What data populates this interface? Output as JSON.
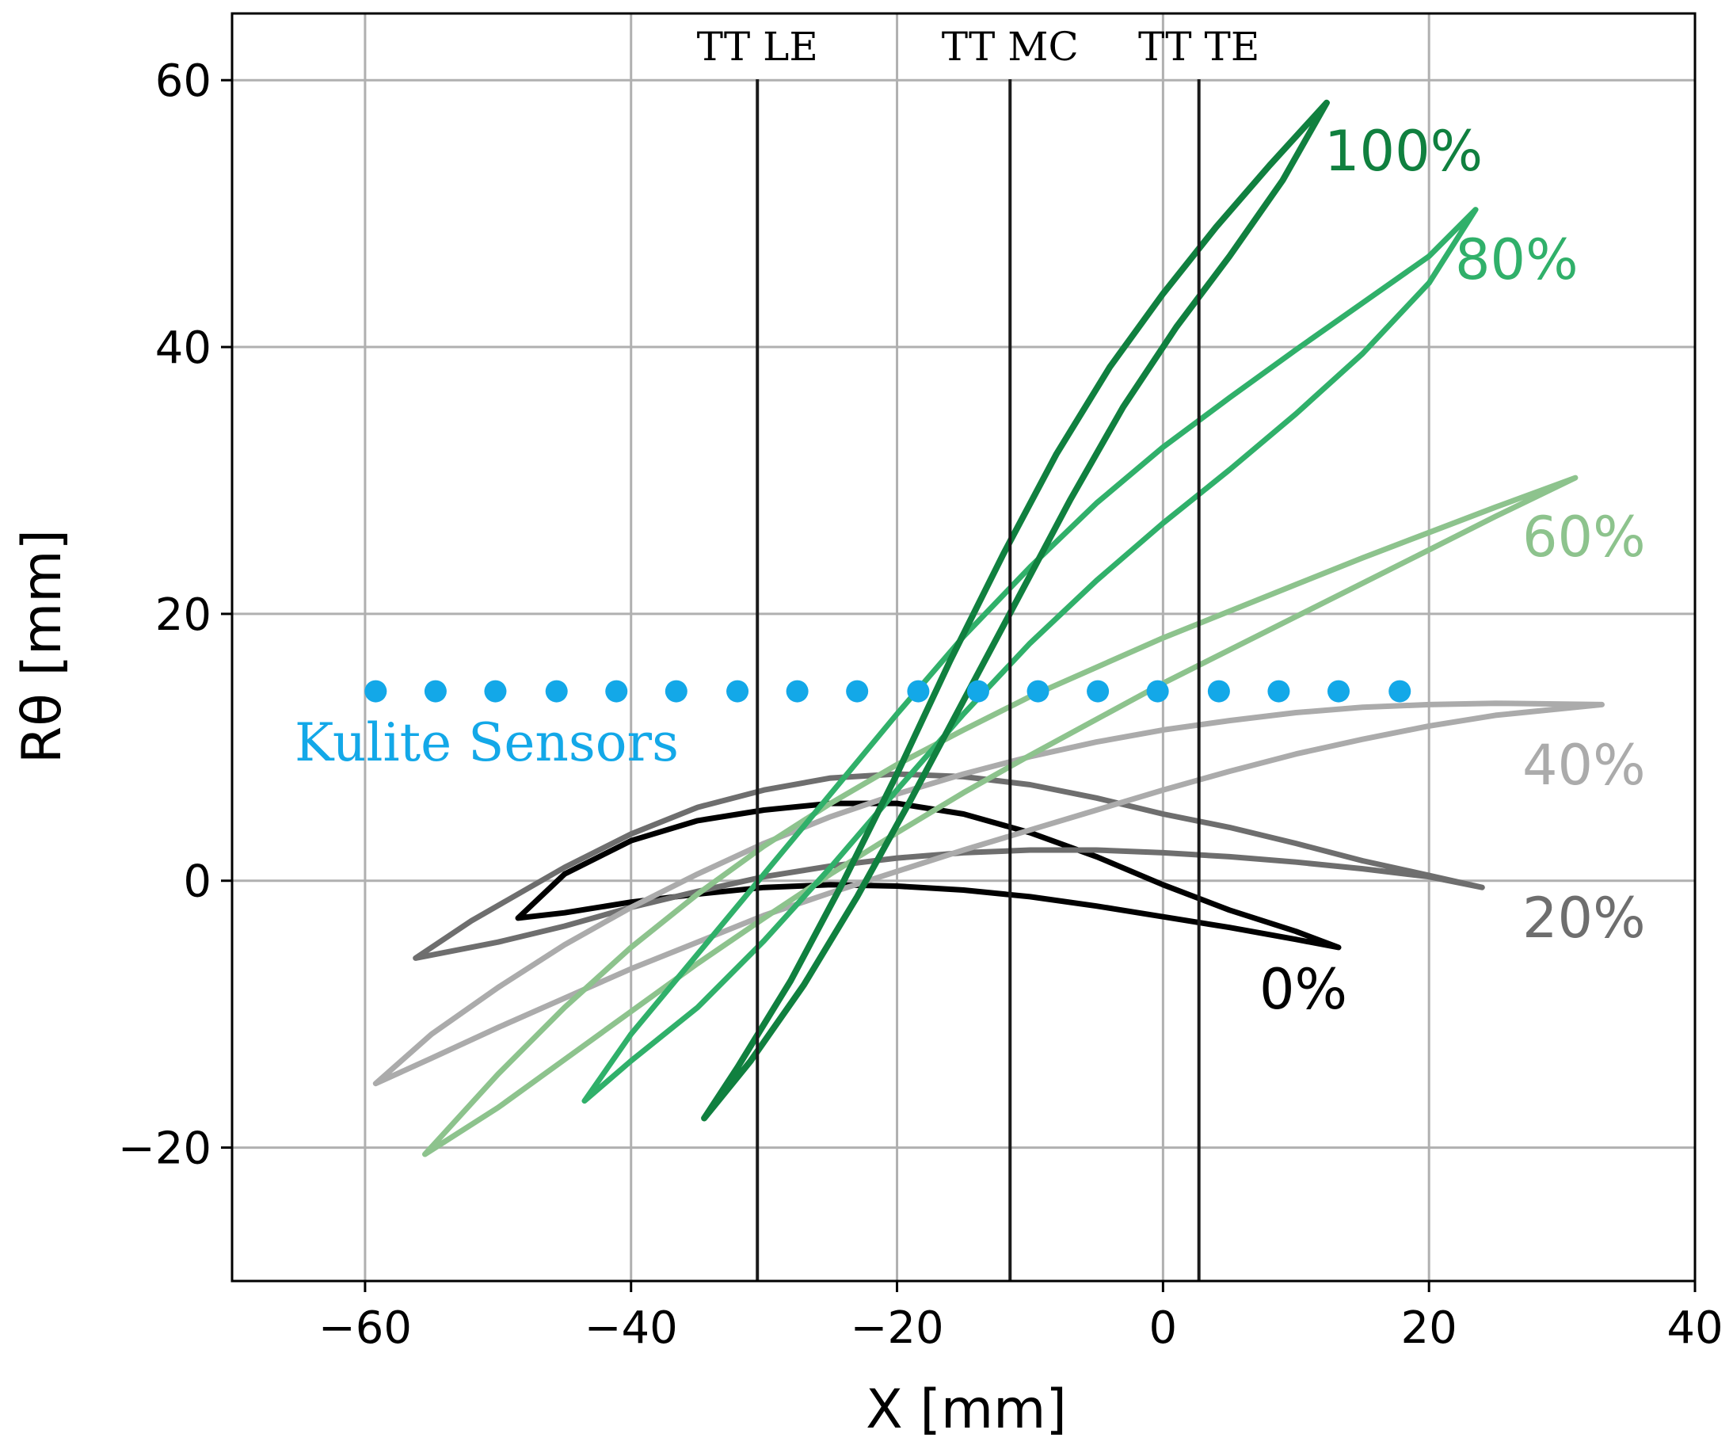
{
  "chart_data": {
    "type": "line",
    "xlabel": "X [mm]",
    "ylabel": "Rθ [mm]",
    "xlim": [
      -70,
      40
    ],
    "ylim": [
      -30,
      65
    ],
    "xticks": [
      -60,
      -40,
      -20,
      0,
      20,
      40
    ],
    "yticks": [
      -20,
      0,
      20,
      40,
      60
    ],
    "xtick_labels": [
      "−60",
      "−40",
      "−20",
      "0",
      "20",
      "40"
    ],
    "ytick_labels": [
      "−20",
      "0",
      "20",
      "40",
      "60"
    ],
    "grid": true,
    "colors": {
      "kulite": "#13a8e8",
      "vline": "#1a1a1a",
      "grid": "#b0b0b0"
    },
    "vlines": [
      {
        "x": -30.5,
        "label": "TT LE"
      },
      {
        "x": -11.5,
        "label": "TT MC"
      },
      {
        "x": 2.7,
        "label": "TT TE"
      }
    ],
    "kulite_sensors": {
      "label": "Kulite Sensors",
      "y": 14.2,
      "x": [
        -59.2,
        -54.7,
        -50.2,
        -45.6,
        -41.1,
        -36.6,
        -32.0,
        -27.5,
        -23.0,
        -18.4,
        -13.9,
        -9.4,
        -4.9,
        -0.4,
        4.2,
        8.7,
        13.2,
        17.8
      ]
    },
    "series": [
      {
        "name": "0%",
        "color": "#000000",
        "width": 7,
        "ss": [
          [
            -48.5,
            -2.8
          ],
          [
            -45,
            0.5
          ],
          [
            -40,
            3.0
          ],
          [
            -35,
            4.5
          ],
          [
            -30,
            5.3
          ],
          [
            -25,
            5.8
          ],
          [
            -20,
            5.8
          ],
          [
            -15,
            5.0
          ],
          [
            -10,
            3.6
          ],
          [
            -5,
            1.8
          ],
          [
            0,
            -0.3
          ],
          [
            5,
            -2.2
          ],
          [
            10,
            -3.8
          ],
          [
            13.2,
            -5.0
          ]
        ],
        "ps": [
          [
            -48.5,
            -2.8
          ],
          [
            -45,
            -2.4
          ],
          [
            -40,
            -1.6
          ],
          [
            -35,
            -1.0
          ],
          [
            -30,
            -0.5
          ],
          [
            -25,
            -0.3
          ],
          [
            -20,
            -0.4
          ],
          [
            -15,
            -0.7
          ],
          [
            -10,
            -1.2
          ],
          [
            -5,
            -1.9
          ],
          [
            0,
            -2.7
          ],
          [
            5,
            -3.5
          ],
          [
            10,
            -4.4
          ],
          [
            13.2,
            -5.0
          ]
        ]
      },
      {
        "name": "20%",
        "color": "#6e6e6e",
        "width": 7,
        "ss": [
          [
            -56.2,
            -5.8
          ],
          [
            -52,
            -3.0
          ],
          [
            -45,
            1.0
          ],
          [
            -40,
            3.5
          ],
          [
            -35,
            5.5
          ],
          [
            -30,
            6.8
          ],
          [
            -25,
            7.7
          ],
          [
            -20,
            8.0
          ],
          [
            -15,
            7.8
          ],
          [
            -10,
            7.2
          ],
          [
            -5,
            6.2
          ],
          [
            0,
            5.0
          ],
          [
            5,
            4.0
          ],
          [
            10,
            2.8
          ],
          [
            15,
            1.5
          ],
          [
            20,
            0.4
          ],
          [
            24,
            -0.5
          ]
        ],
        "ps": [
          [
            -56.2,
            -5.8
          ],
          [
            -50,
            -4.6
          ],
          [
            -45,
            -3.4
          ],
          [
            -40,
            -2.0
          ],
          [
            -35,
            -0.8
          ],
          [
            -30,
            0.3
          ],
          [
            -25,
            1.1
          ],
          [
            -20,
            1.7
          ],
          [
            -15,
            2.1
          ],
          [
            -10,
            2.3
          ],
          [
            -5,
            2.3
          ],
          [
            0,
            2.1
          ],
          [
            5,
            1.8
          ],
          [
            10,
            1.4
          ],
          [
            15,
            0.9
          ],
          [
            20,
            0.3
          ],
          [
            24,
            -0.5
          ]
        ]
      },
      {
        "name": "40%",
        "color": "#ababab",
        "width": 7,
        "ss": [
          [
            -59.2,
            -15.2
          ],
          [
            -55,
            -11.5
          ],
          [
            -50,
            -8.0
          ],
          [
            -45,
            -4.8
          ],
          [
            -40,
            -2.0
          ],
          [
            -35,
            0.5
          ],
          [
            -30,
            2.8
          ],
          [
            -25,
            4.8
          ],
          [
            -20,
            6.5
          ],
          [
            -15,
            8.0
          ],
          [
            -10,
            9.3
          ],
          [
            -5,
            10.4
          ],
          [
            0,
            11.3
          ],
          [
            5,
            12.0
          ],
          [
            10,
            12.6
          ],
          [
            15,
            13.0
          ],
          [
            20,
            13.2
          ],
          [
            25,
            13.3
          ],
          [
            33,
            13.2
          ]
        ],
        "ps": [
          [
            -59.2,
            -15.2
          ],
          [
            -55,
            -13.3
          ],
          [
            -50,
            -11.0
          ],
          [
            -45,
            -8.8
          ],
          [
            -40,
            -6.6
          ],
          [
            -35,
            -4.6
          ],
          [
            -30,
            -2.6
          ],
          [
            -25,
            -0.9
          ],
          [
            -20,
            0.7
          ],
          [
            -15,
            2.3
          ],
          [
            -10,
            3.8
          ],
          [
            -5,
            5.3
          ],
          [
            0,
            6.8
          ],
          [
            5,
            8.2
          ],
          [
            10,
            9.5
          ],
          [
            15,
            10.6
          ],
          [
            20,
            11.6
          ],
          [
            25,
            12.4
          ],
          [
            33,
            13.2
          ]
        ]
      },
      {
        "name": "60%",
        "color": "#8dc38d",
        "width": 7,
        "ss": [
          [
            -55.5,
            -20.5
          ],
          [
            -50,
            -14.5
          ],
          [
            -45,
            -9.5
          ],
          [
            -40,
            -5.0
          ],
          [
            -35,
            -1.0
          ],
          [
            -30,
            2.6
          ],
          [
            -25,
            5.8
          ],
          [
            -20,
            8.7
          ],
          [
            -15,
            11.3
          ],
          [
            -10,
            13.8
          ],
          [
            -5,
            16.0
          ],
          [
            0,
            18.2
          ],
          [
            5,
            20.2
          ],
          [
            10,
            22.2
          ],
          [
            15,
            24.2
          ],
          [
            20,
            26.1
          ],
          [
            25,
            28.0
          ],
          [
            31,
            30.2
          ]
        ],
        "ps": [
          [
            -55.5,
            -20.5
          ],
          [
            -50,
            -17.0
          ],
          [
            -45,
            -13.4
          ],
          [
            -40,
            -9.8
          ],
          [
            -35,
            -6.2
          ],
          [
            -30,
            -2.8
          ],
          [
            -25,
            0.5
          ],
          [
            -20,
            3.6
          ],
          [
            -15,
            6.6
          ],
          [
            -10,
            9.4
          ],
          [
            -5,
            12.1
          ],
          [
            0,
            14.8
          ],
          [
            5,
            17.3
          ],
          [
            10,
            19.8
          ],
          [
            15,
            22.3
          ],
          [
            20,
            24.8
          ],
          [
            25,
            27.3
          ],
          [
            31,
            30.2
          ]
        ]
      },
      {
        "name": "80%",
        "color": "#30b06a",
        "width": 7,
        "ss": [
          [
            -43.5,
            -16.5
          ],
          [
            -40,
            -11.5
          ],
          [
            -35,
            -5.5
          ],
          [
            -30,
            0.5
          ],
          [
            -25,
            6.5
          ],
          [
            -20,
            12.5
          ],
          [
            -15,
            18.3
          ],
          [
            -10,
            23.5
          ],
          [
            -5,
            28.3
          ],
          [
            0,
            32.5
          ],
          [
            5,
            36.2
          ],
          [
            10,
            39.8
          ],
          [
            15,
            43.3
          ],
          [
            20,
            46.8
          ],
          [
            23.5,
            50.3
          ]
        ],
        "ps": [
          [
            -43.5,
            -16.5
          ],
          [
            -40,
            -13.5
          ],
          [
            -35,
            -9.5
          ],
          [
            -30,
            -4.5
          ],
          [
            -25,
            1.0
          ],
          [
            -20,
            6.8
          ],
          [
            -15,
            12.5
          ],
          [
            -10,
            17.8
          ],
          [
            -5,
            22.5
          ],
          [
            0,
            26.8
          ],
          [
            5,
            30.8
          ],
          [
            10,
            35.0
          ],
          [
            15,
            39.5
          ],
          [
            20,
            44.8
          ],
          [
            23.5,
            50.3
          ]
        ]
      },
      {
        "name": "100%",
        "color": "#10803f",
        "width": 8,
        "ss": [
          [
            -34.5,
            -17.8
          ],
          [
            -32,
            -14.0
          ],
          [
            -28,
            -7.5
          ],
          [
            -24,
            0.0
          ],
          [
            -20,
            8.0
          ],
          [
            -16,
            16.5
          ],
          [
            -12,
            24.5
          ],
          [
            -8,
            32.0
          ],
          [
            -4,
            38.5
          ],
          [
            0,
            44.0
          ],
          [
            4,
            49.0
          ],
          [
            8,
            53.6
          ],
          [
            12.3,
            58.3
          ]
        ],
        "ps": [
          [
            -34.5,
            -17.8
          ],
          [
            -31,
            -13.5
          ],
          [
            -27,
            -7.8
          ],
          [
            -23,
            -1.2
          ],
          [
            -19,
            6.0
          ],
          [
            -15,
            13.5
          ],
          [
            -11,
            21.0
          ],
          [
            -7,
            28.5
          ],
          [
            -3,
            35.5
          ],
          [
            1,
            41.5
          ],
          [
            5,
            46.8
          ],
          [
            9,
            52.5
          ],
          [
            12.3,
            58.3
          ]
        ]
      }
    ]
  }
}
